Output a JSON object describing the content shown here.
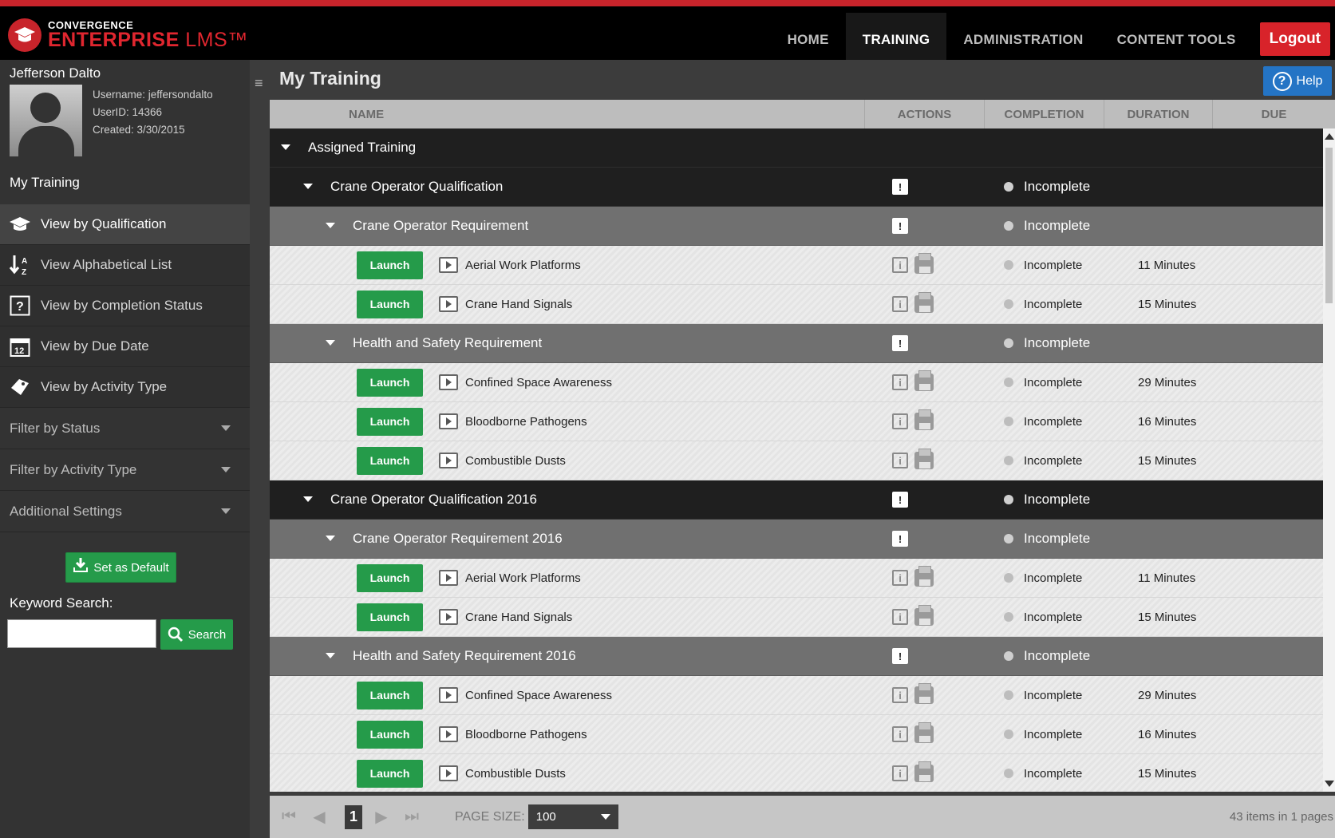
{
  "brand": {
    "line1": "CONVERGENCE",
    "line2": "ENTERPRISE",
    "line3": "LMS™"
  },
  "nav": {
    "items": [
      "HOME",
      "TRAINING",
      "ADMINISTRATION",
      "CONTENT TOOLS"
    ],
    "active": "TRAINING",
    "logout": "Logout"
  },
  "user": {
    "name": "Jefferson Dalto",
    "username": "Username: jeffersondalto",
    "userid": "UserID: 14366",
    "created": "Created: 3/30/2015"
  },
  "sidebar": {
    "my_training": "My Training",
    "items": [
      {
        "label": "View by Qualification",
        "icon": "graduation-cap-icon"
      },
      {
        "label": "View Alphabetical List",
        "icon": "sort-az-icon"
      },
      {
        "label": "View by Completion Status",
        "icon": "question-icon"
      },
      {
        "label": "View by Due Date",
        "icon": "calendar-icon"
      },
      {
        "label": "View by Activity Type",
        "icon": "tag-icon"
      }
    ],
    "filters": [
      "Filter by Status",
      "Filter by Activity Type",
      "Additional Settings"
    ],
    "set_default": "Set as Default",
    "keyword_label": "Keyword Search:",
    "keyword_value": "",
    "search_label": "Search"
  },
  "main": {
    "title": "My Training",
    "help": "Help",
    "columns": [
      "NAME",
      "ACTIONS",
      "COMPLETION",
      "DURATION",
      "DUE"
    ],
    "launch_label": "Launch",
    "rows": [
      {
        "level": 0,
        "name": "Assigned Training"
      },
      {
        "level": 1,
        "name": "Crane Operator Qualification",
        "completion": "Incomplete"
      },
      {
        "level": 2,
        "name": "Crane Operator Requirement",
        "completion": "Incomplete"
      },
      {
        "level": 3,
        "name": "Aerial Work Platforms",
        "completion": "Incomplete",
        "duration": "11 Minutes"
      },
      {
        "level": 3,
        "name": "Crane Hand Signals",
        "completion": "Incomplete",
        "duration": "15 Minutes"
      },
      {
        "level": 2,
        "name": "Health and Safety Requirement",
        "completion": "Incomplete"
      },
      {
        "level": 3,
        "name": "Confined Space Awareness",
        "completion": "Incomplete",
        "duration": "29 Minutes"
      },
      {
        "level": 3,
        "name": "Bloodborne Pathogens",
        "completion": "Incomplete",
        "duration": "16 Minutes"
      },
      {
        "level": 3,
        "name": "Combustible Dusts",
        "completion": "Incomplete",
        "duration": "15 Minutes"
      },
      {
        "level": 1,
        "name": "Crane Operator Qualification 2016",
        "completion": "Incomplete"
      },
      {
        "level": 2,
        "name": "Crane Operator Requirement 2016",
        "completion": "Incomplete"
      },
      {
        "level": 3,
        "name": "Aerial Work Platforms",
        "completion": "Incomplete",
        "duration": "11 Minutes"
      },
      {
        "level": 3,
        "name": "Crane Hand Signals",
        "completion": "Incomplete",
        "duration": "15 Minutes"
      },
      {
        "level": 2,
        "name": "Health and Safety Requirement 2016",
        "completion": "Incomplete"
      },
      {
        "level": 3,
        "name": "Confined Space Awareness",
        "completion": "Incomplete",
        "duration": "29 Minutes"
      },
      {
        "level": 3,
        "name": "Bloodborne Pathogens",
        "completion": "Incomplete",
        "duration": "16 Minutes"
      },
      {
        "level": 3,
        "name": "Combustible Dusts",
        "completion": "Incomplete",
        "duration": "15 Minutes"
      }
    ]
  },
  "pager": {
    "current_page": "1",
    "page_size_label": "PAGE SIZE:",
    "page_size": "100",
    "info": "43 items in 1 pages"
  },
  "colors": {
    "brand_red": "#d8232a",
    "launch_green": "#259b4a",
    "help_blue": "#2474c5"
  }
}
